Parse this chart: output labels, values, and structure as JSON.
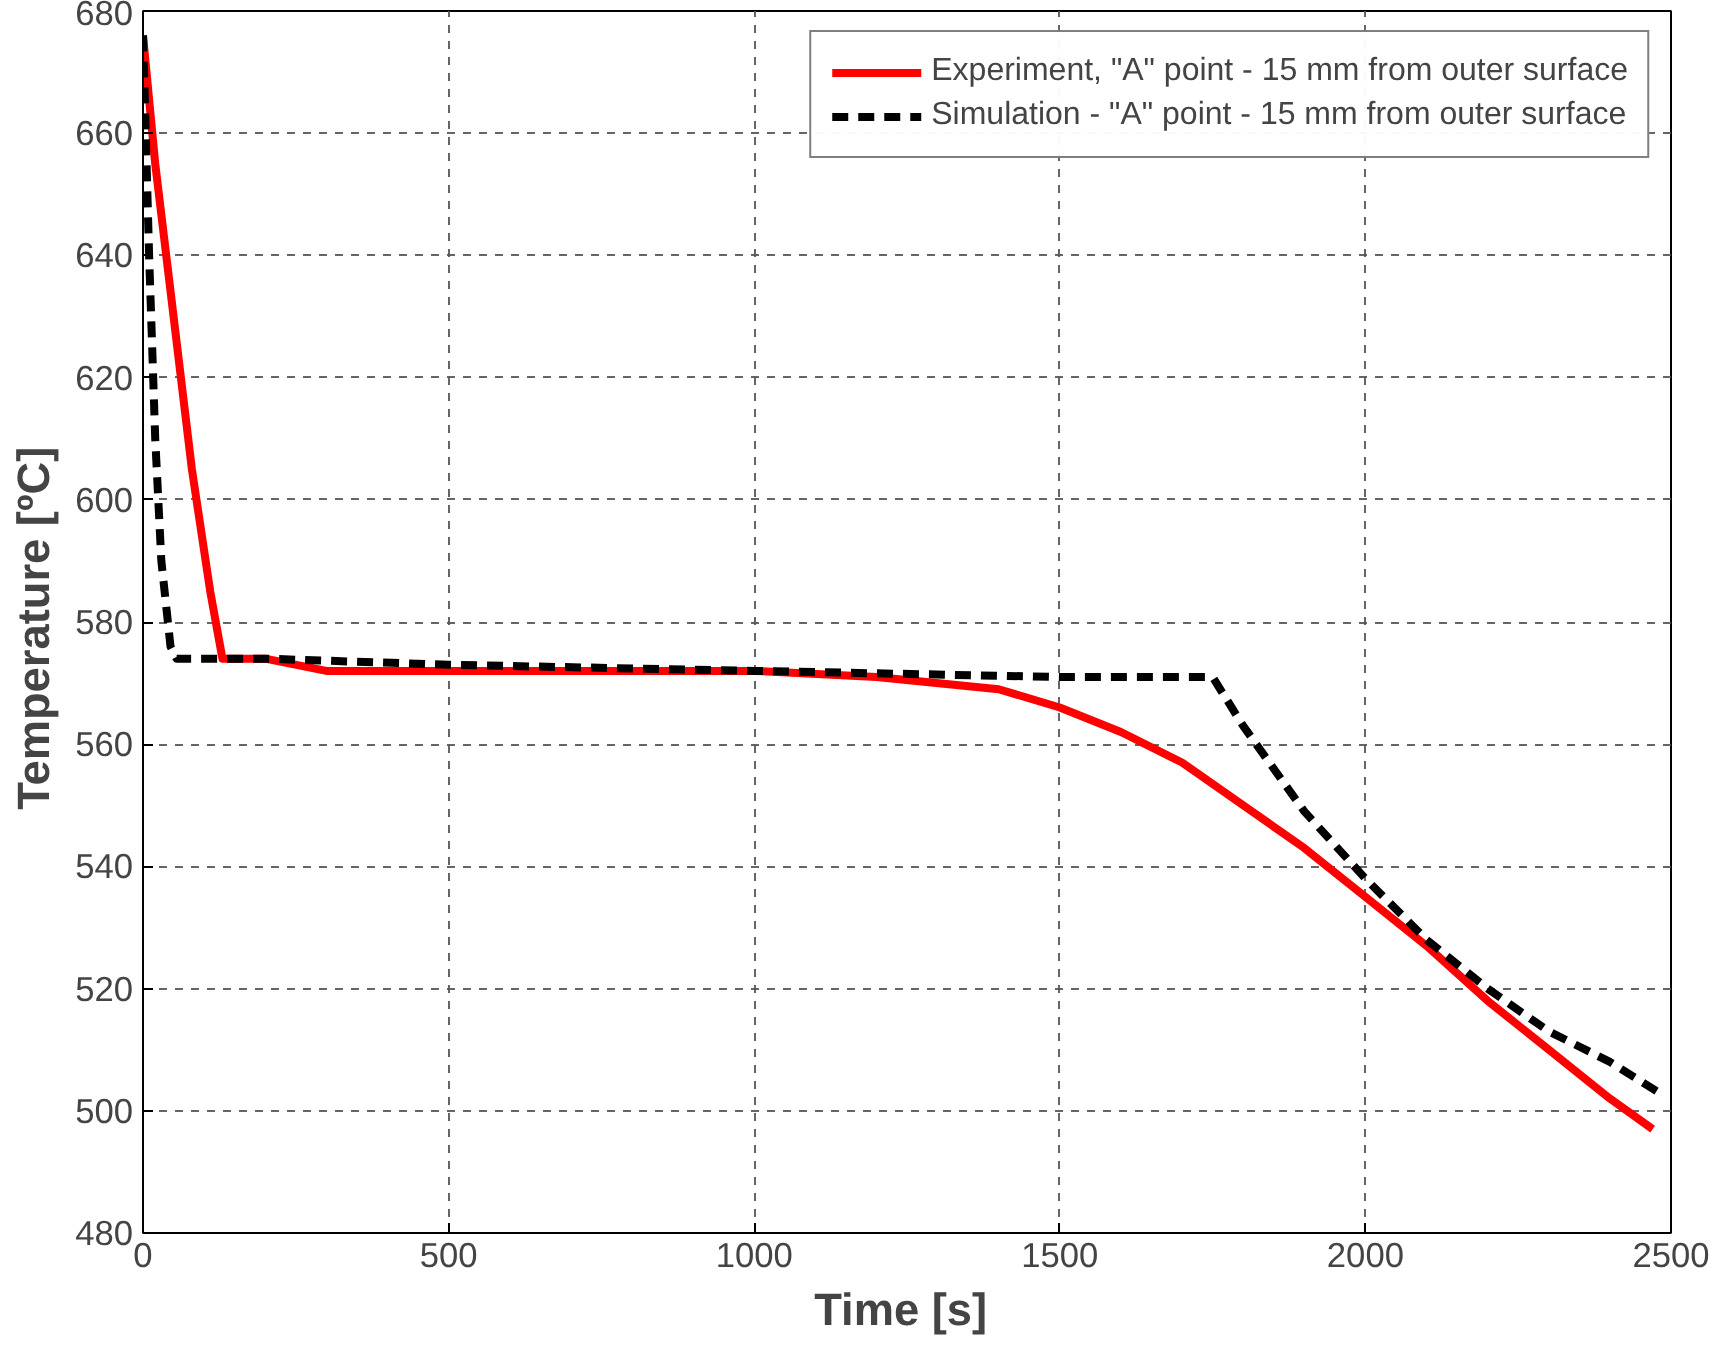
{
  "chart_data": {
    "type": "line",
    "xlabel": "Time  [s]",
    "ylabel": "Temperature  [ºC]",
    "xlim": [
      0,
      2500
    ],
    "ylim": [
      480,
      680
    ],
    "xticks": [
      0,
      500,
      1000,
      1500,
      2000,
      2500
    ],
    "yticks": [
      480,
      500,
      520,
      540,
      560,
      580,
      600,
      620,
      640,
      660,
      680
    ],
    "grid": true,
    "legend": "top right",
    "series": [
      {
        "name": "Experiment, \"A\" point - 15 mm from outer surface",
        "color": "#ff0000",
        "line_style": "solid",
        "x": [
          0,
          20,
          50,
          80,
          110,
          130,
          200,
          300,
          500,
          1000,
          1200,
          1400,
          1500,
          1600,
          1700,
          1800,
          1900,
          2000,
          2100,
          2200,
          2300,
          2400,
          2470
        ],
        "values": [
          676,
          655,
          630,
          605,
          585,
          574,
          574,
          572,
          572,
          572,
          571,
          569,
          566,
          562,
          557,
          550,
          543,
          535,
          527,
          518,
          510,
          502,
          497
        ]
      },
      {
        "name": "Simulation - \"A\" point - 15 mm from outer surface",
        "color": "#000000",
        "line_style": "dashed",
        "x": [
          0,
          10,
          20,
          30,
          45,
          55,
          200,
          500,
          1000,
          1500,
          1750,
          1800,
          1900,
          2000,
          2100,
          2200,
          2300,
          2400,
          2480
        ],
        "values": [
          676,
          640,
          610,
          590,
          576,
          574,
          574,
          573,
          572,
          571,
          571,
          563,
          549,
          538,
          528,
          520,
          513,
          508,
          503
        ]
      }
    ]
  }
}
